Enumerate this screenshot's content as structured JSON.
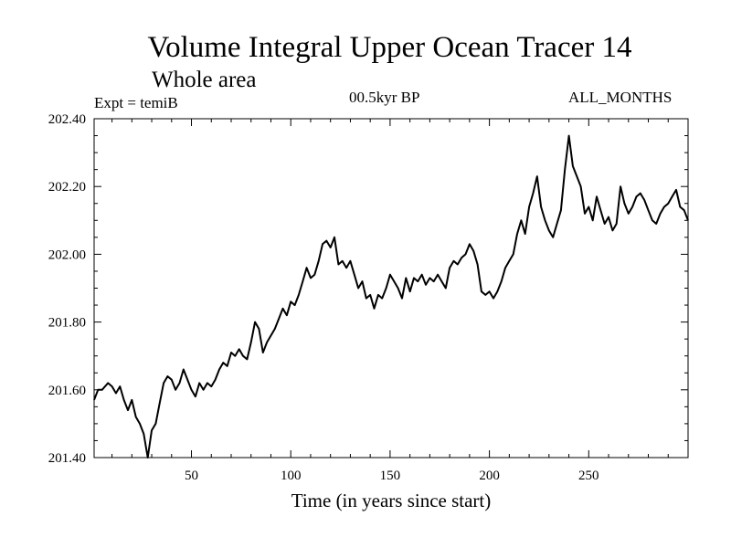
{
  "chart_data": {
    "type": "line",
    "title": "Volume Integral Upper Ocean Tracer 14",
    "subtitle": "Whole area",
    "annotations": {
      "experiment": "Expt = temiB",
      "period": "00.5kyr BP",
      "months": "ALL_MONTHS"
    },
    "xlabel": "Time (in years since start)",
    "ylabel": "",
    "xlim": [
      1,
      300
    ],
    "ylim": [
      201.4,
      202.4
    ],
    "xticks": [
      50,
      100,
      150,
      200,
      250
    ],
    "yticks": [
      201.4,
      201.6,
      201.8,
      202.0,
      202.2,
      202.4
    ],
    "ytick_labels": [
      "201.40",
      "201.60",
      "201.80",
      "202.00",
      "202.20",
      "202.40"
    ],
    "grid": false,
    "series": [
      {
        "name": "Tracer 14",
        "color": "#000000",
        "x": [
          1,
          3,
          5,
          8,
          10,
          12,
          14,
          16,
          18,
          20,
          22,
          24,
          26,
          28,
          30,
          32,
          34,
          36,
          38,
          40,
          42,
          44,
          46,
          48,
          50,
          52,
          54,
          56,
          58,
          60,
          62,
          64,
          66,
          68,
          70,
          72,
          74,
          76,
          78,
          80,
          82,
          84,
          86,
          88,
          90,
          92,
          94,
          96,
          98,
          100,
          102,
          104,
          106,
          108,
          110,
          112,
          114,
          116,
          118,
          120,
          122,
          124,
          126,
          128,
          130,
          132,
          134,
          136,
          138,
          140,
          142,
          144,
          146,
          148,
          150,
          152,
          154,
          156,
          158,
          160,
          162,
          164,
          166,
          168,
          170,
          172,
          174,
          176,
          178,
          180,
          182,
          184,
          186,
          188,
          190,
          192,
          194,
          196,
          198,
          200,
          202,
          204,
          206,
          208,
          210,
          212,
          214,
          216,
          218,
          220,
          222,
          224,
          226,
          228,
          230,
          232,
          234,
          236,
          238,
          240,
          242,
          244,
          246,
          248,
          250,
          252,
          254,
          256,
          258,
          260,
          262,
          264,
          266,
          268,
          270,
          272,
          274,
          276,
          278,
          280,
          282,
          284,
          286,
          288,
          290,
          292,
          294,
          296,
          298,
          300
        ],
        "values": [
          201.57,
          201.6,
          201.6,
          201.62,
          201.61,
          201.59,
          201.61,
          201.57,
          201.54,
          201.57,
          201.52,
          201.5,
          201.47,
          201.4,
          201.48,
          201.5,
          201.56,
          201.62,
          201.64,
          201.63,
          201.6,
          201.62,
          201.66,
          201.63,
          201.6,
          201.58,
          201.62,
          201.6,
          201.62,
          201.61,
          201.63,
          201.66,
          201.68,
          201.67,
          201.71,
          201.7,
          201.72,
          201.7,
          201.69,
          201.74,
          201.8,
          201.78,
          201.71,
          201.74,
          201.76,
          201.78,
          201.81,
          201.84,
          201.82,
          201.86,
          201.85,
          201.88,
          201.92,
          201.96,
          201.93,
          201.94,
          201.98,
          202.03,
          202.04,
          202.02,
          202.05,
          201.97,
          201.98,
          201.96,
          201.98,
          201.94,
          201.9,
          201.92,
          201.87,
          201.88,
          201.84,
          201.88,
          201.87,
          201.9,
          201.94,
          201.92,
          201.9,
          201.87,
          201.93,
          201.89,
          201.93,
          201.92,
          201.94,
          201.91,
          201.93,
          201.92,
          201.94,
          201.92,
          201.9,
          201.96,
          201.98,
          201.97,
          201.99,
          202.0,
          202.03,
          202.01,
          201.97,
          201.89,
          201.88,
          201.89,
          201.87,
          201.89,
          201.92,
          201.96,
          201.98,
          202.0,
          202.06,
          202.1,
          202.06,
          202.14,
          202.18,
          202.23,
          202.14,
          202.1,
          202.07,
          202.05,
          202.09,
          202.13,
          202.25,
          202.35,
          202.26,
          202.23,
          202.2,
          202.12,
          202.14,
          202.1,
          202.17,
          202.13,
          202.09,
          202.11,
          202.07,
          202.09,
          202.2,
          202.15,
          202.12,
          202.14,
          202.17,
          202.18,
          202.16,
          202.13,
          202.1,
          202.09,
          202.12,
          202.14,
          202.15,
          202.17,
          202.19,
          202.14,
          202.13,
          202.1
        ]
      }
    ]
  }
}
